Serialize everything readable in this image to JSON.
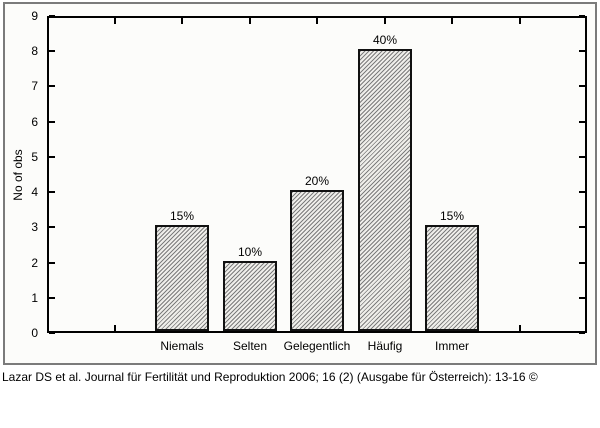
{
  "chart_data": {
    "type": "bar",
    "title": "",
    "categories": [
      "Niemals",
      "Selten",
      "Gelegentlich",
      "Häufig",
      "Immer"
    ],
    "values": [
      3,
      2,
      4,
      8,
      3
    ],
    "bar_labels": [
      "15%",
      "10%",
      "20%",
      "40%",
      "15%"
    ],
    "xlabel": "",
    "ylabel": "No of obs",
    "ylim": [
      0,
      9
    ],
    "ytick_step": 1,
    "yticks": [
      0,
      1,
      2,
      3,
      4,
      5,
      6,
      7,
      8,
      9
    ],
    "grid": false,
    "legend": false,
    "bar_fill": "diagonal-hatch",
    "tick_style": "inward-all-sides"
  },
  "caption": "Lazar DS et al. Journal für Fertilität und Reproduktion 2006; 16 (2) (Ausgabe für Österreich): 13-16 ©",
  "colors": {
    "background": "#ffffff",
    "frame_border": "#7b7b7b",
    "plot_background": "#fcfcfa",
    "plot_border": "#000000",
    "hatch_line": "#7d7d7d",
    "hatch_background": "#efeeea",
    "text": "#000000"
  }
}
